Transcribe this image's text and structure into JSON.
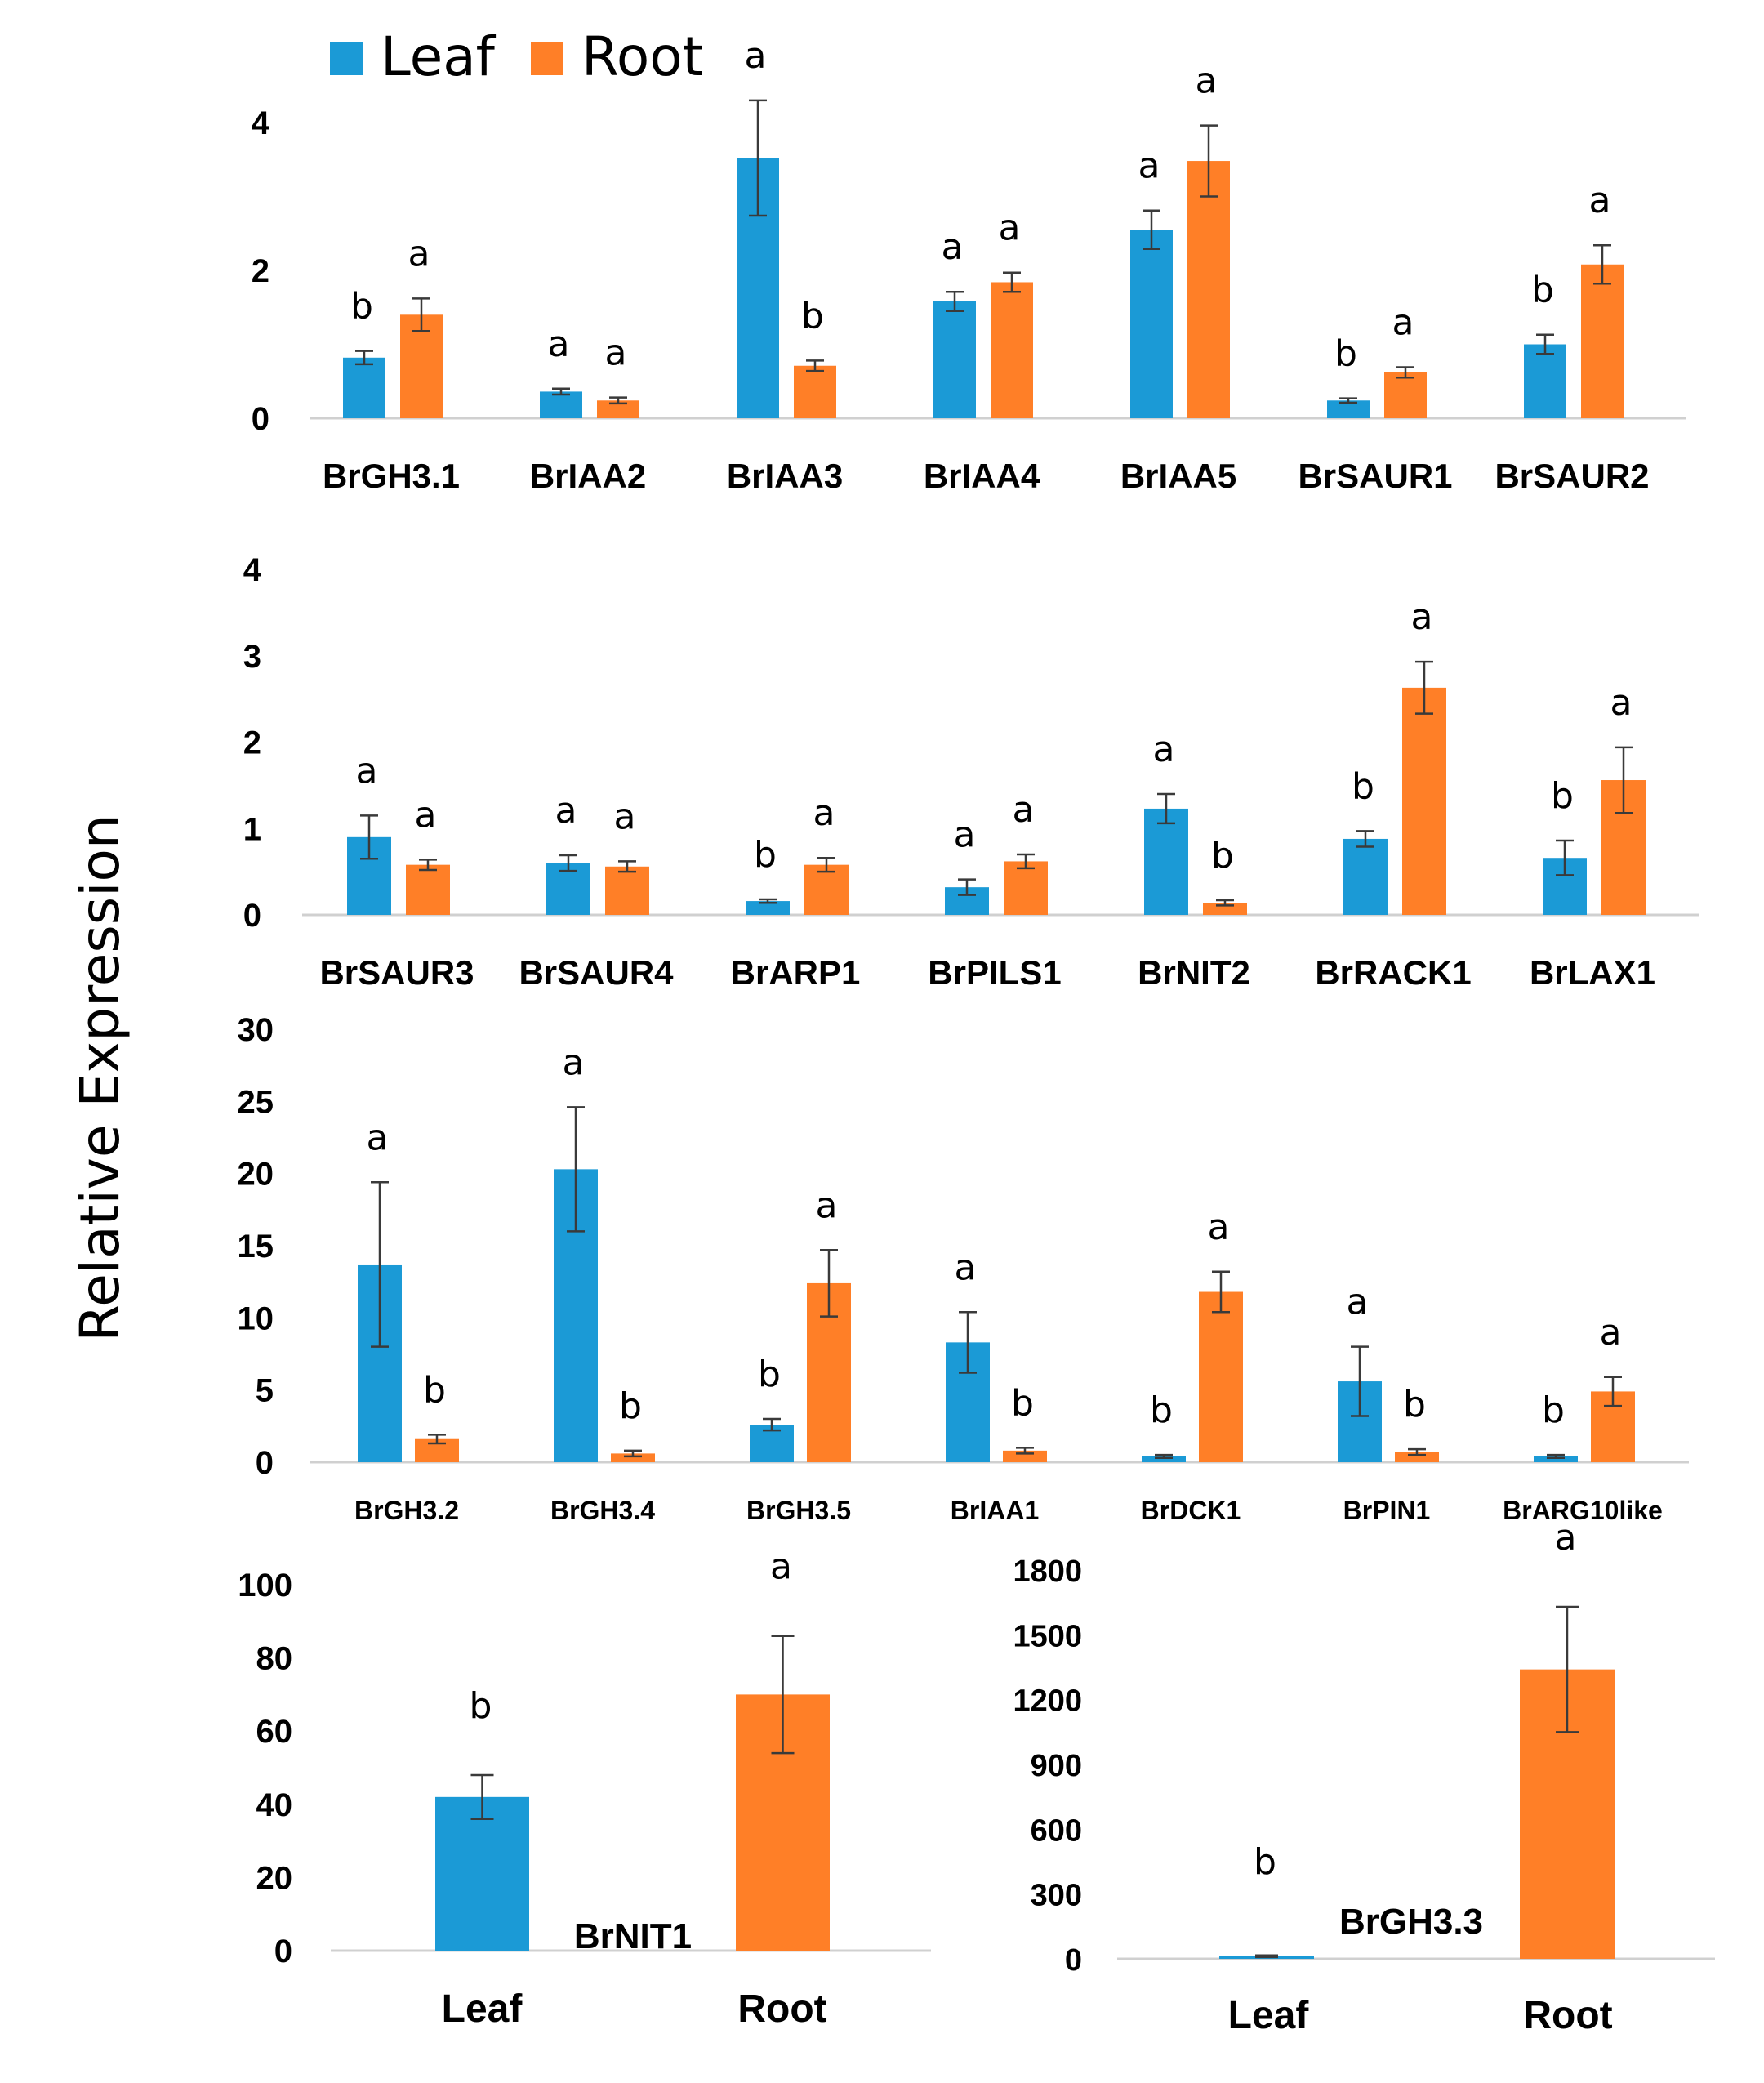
{
  "legend": {
    "items": [
      "Leaf",
      "Root"
    ],
    "colors": [
      "#1b9ad6",
      "#ff7f27"
    ]
  },
  "ylabel": "Relative Expression",
  "chart_data": [
    {
      "type": "bar",
      "panel": "row1",
      "categories": [
        "BrGH3.1",
        "BrIAA2",
        "BrIAA3",
        "BrIAA4",
        "BrIAA5",
        "BrSAUR1",
        "BrSAUR2"
      ],
      "ylim": [
        0,
        4
      ],
      "yticks": [
        "0",
        "2",
        "4"
      ],
      "series": [
        {
          "name": "Leaf",
          "values": [
            0.82,
            0.36,
            3.52,
            1.58,
            2.55,
            0.24,
            1.0
          ],
          "errors": [
            0.09,
            0.04,
            0.78,
            0.13,
            0.26,
            0.03,
            0.13
          ],
          "letters": [
            "b",
            "a",
            "a",
            "a",
            "a",
            "b",
            "b"
          ]
        },
        {
          "name": "Root",
          "values": [
            1.4,
            0.24,
            0.71,
            1.84,
            3.48,
            0.62,
            2.08
          ],
          "errors": [
            0.22,
            0.04,
            0.07,
            0.13,
            0.48,
            0.07,
            0.26
          ],
          "letters": [
            "a",
            "a",
            "b",
            "a",
            "a",
            "a",
            "a"
          ]
        }
      ]
    },
    {
      "type": "bar",
      "panel": "row2",
      "categories": [
        "BrSAUR3",
        "BrSAUR4",
        "BrARP1",
        "BrPILS1",
        "BrNIT2",
        "BrRACK1",
        "BrLAX1"
      ],
      "ylim": [
        0,
        4
      ],
      "yticks": [
        "0",
        "1",
        "2",
        "3",
        "4"
      ],
      "series": [
        {
          "name": "Leaf",
          "values": [
            0.9,
            0.6,
            0.16,
            0.32,
            1.23,
            0.88,
            0.66
          ],
          "errors": [
            0.25,
            0.09,
            0.02,
            0.09,
            0.17,
            0.09,
            0.2
          ],
          "letters": [
            "a",
            "a",
            "b",
            "a",
            "a",
            "b",
            "b"
          ]
        },
        {
          "name": "Root",
          "values": [
            0.58,
            0.56,
            0.58,
            0.62,
            0.14,
            2.63,
            1.56
          ],
          "errors": [
            0.06,
            0.06,
            0.08,
            0.08,
            0.03,
            0.3,
            0.38
          ],
          "letters": [
            "a",
            "a",
            "a",
            "a",
            "b",
            "a",
            "a"
          ]
        }
      ]
    },
    {
      "type": "bar",
      "panel": "row3",
      "categories": [
        "BrGH3.2",
        "BrGH3.4",
        "BrGH3.5",
        "BrIAA1",
        "BrDCK1",
        "BrPIN1",
        "BrARG10like"
      ],
      "ylim": [
        0,
        30
      ],
      "yticks": [
        "0",
        "5",
        "10",
        "15",
        "20",
        "25",
        "30"
      ],
      "series": [
        {
          "name": "Leaf",
          "values": [
            13.7,
            20.3,
            2.6,
            8.3,
            0.4,
            5.6,
            0.4
          ],
          "errors": [
            5.7,
            4.3,
            0.4,
            2.1,
            0.1,
            2.4,
            0.1
          ],
          "letters": [
            "a",
            "a",
            "b",
            "a",
            "b",
            "a",
            "b"
          ]
        },
        {
          "name": "Root",
          "values": [
            1.6,
            0.6,
            12.4,
            0.8,
            11.8,
            0.7,
            4.9
          ],
          "errors": [
            0.3,
            0.2,
            2.3,
            0.2,
            1.4,
            0.2,
            1.0
          ],
          "letters": [
            "b",
            "b",
            "a",
            "b",
            "a",
            "b",
            "a"
          ]
        }
      ]
    },
    {
      "type": "bar",
      "panel": "row4-left",
      "gene": "BrNIT1",
      "categories": [
        "Leaf",
        "Root"
      ],
      "ylim": [
        0,
        100
      ],
      "yticks": [
        "0",
        "20",
        "40",
        "60",
        "80",
        "100"
      ],
      "values": [
        42,
        70
      ],
      "errors": [
        6,
        16
      ],
      "letters": [
        "b",
        "a"
      ]
    },
    {
      "type": "bar",
      "panel": "row4-right",
      "gene": "BrGH3.3",
      "categories": [
        "Leaf",
        "Root"
      ],
      "ylim": [
        0,
        1800
      ],
      "yticks": [
        "0",
        "300",
        "600",
        "900",
        "1200",
        "1500",
        "1800"
      ],
      "values": [
        12,
        1340
      ],
      "errors": [
        4,
        290
      ],
      "letters": [
        "b",
        "a"
      ]
    }
  ]
}
